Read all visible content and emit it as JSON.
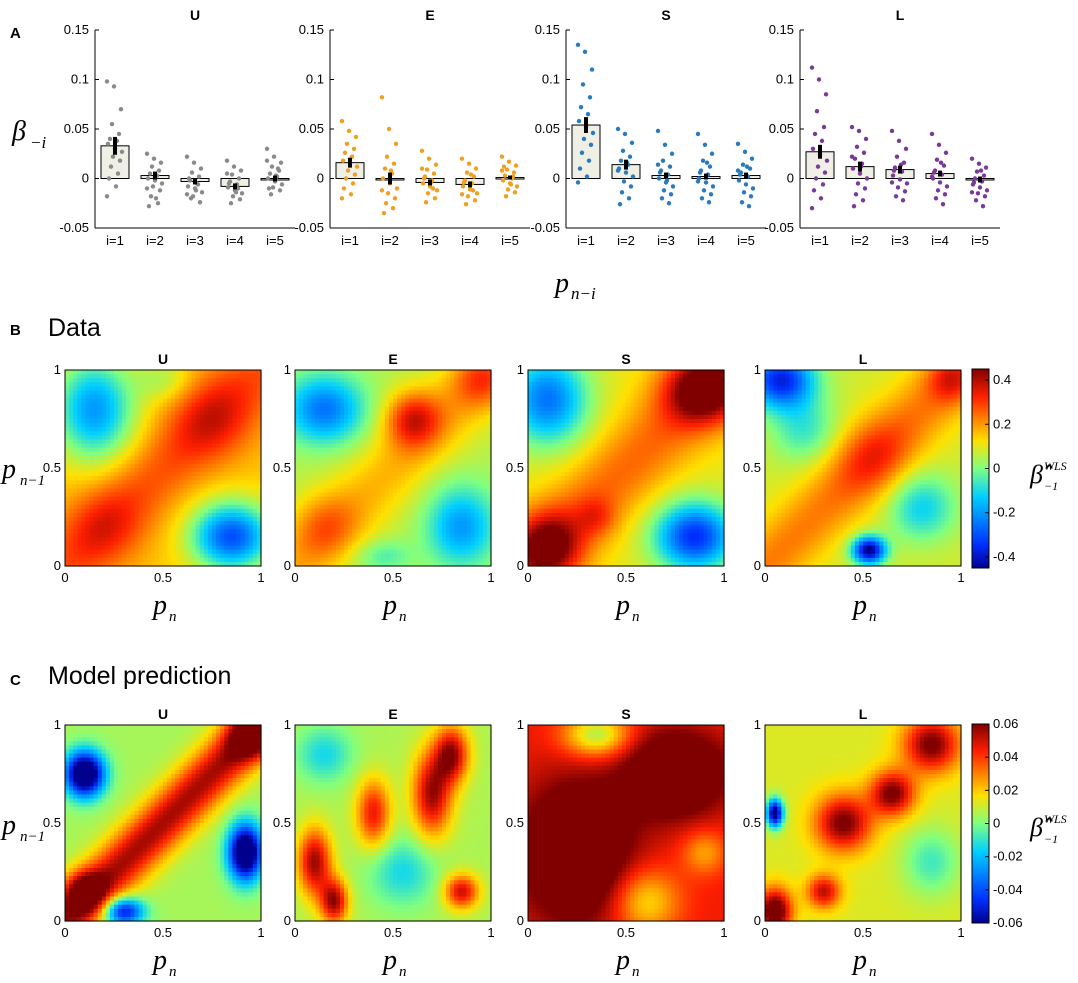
{
  "figure": {
    "panel_a": {
      "letter": "A",
      "xlabel_main": "p",
      "xlabel_sub": "n−i",
      "ylabel_main": "β",
      "ylabel_sub": "−i"
    },
    "panel_b": {
      "letter": "B",
      "title": "Data",
      "ylabel_main": "p",
      "ylabel_sub": "n−1",
      "xlabel_main": "p",
      "xlabel_sub": "n",
      "cbar_main": "β̂",
      "cbar_sup": "WLS",
      "cbar_sub": "−1"
    },
    "panel_c": {
      "letter": "C",
      "title": "Model prediction",
      "ylabel_main": "p",
      "ylabel_sub": "n−1",
      "xlabel_main": "p",
      "xlabel_sub": "n",
      "cbar_main": "β̂",
      "cbar_sup": "WLS",
      "cbar_sub": "−1"
    }
  },
  "colors": {
    "U": "#8a8a8a",
    "E": "#f0a020",
    "S": "#2a7ac0",
    "L": "#7a3a9a",
    "bar_fill": "#efefe5"
  },
  "chart_data": [
    {
      "type": "bar",
      "panel": "A",
      "ylim": [
        -0.05,
        0.15
      ],
      "yticks": [
        "0.15",
        "0.1",
        "0.05",
        "0",
        "-0.05"
      ],
      "categories": [
        "i=1",
        "i=2",
        "i=3",
        "i=4",
        "i=5"
      ],
      "series": [
        {
          "name": "U",
          "values": [
            0.033,
            0.003,
            -0.003,
            -0.008,
            0.0
          ],
          "sem": [
            0.009,
            0.004,
            0.003,
            0.003,
            0.003
          ],
          "points": [
            [
              0.098,
              0.093,
              0.07,
              0.055,
              0.045,
              0.04,
              0.038,
              0.035,
              0.03,
              0.027,
              0.022,
              0.018,
              0.012,
              0.005,
              0.0,
              -0.008,
              -0.018
            ],
            [
              0.025,
              0.02,
              0.016,
              0.012,
              0.008,
              0.005,
              0.003,
              0.0,
              -0.002,
              -0.005,
              -0.008,
              -0.012,
              -0.018,
              -0.025,
              -0.028,
              -0.02,
              -0.01
            ],
            [
              0.022,
              0.016,
              0.01,
              0.006,
              0.002,
              -0.002,
              -0.005,
              -0.008,
              -0.01,
              -0.014,
              -0.018,
              -0.024,
              -0.02,
              -0.006,
              0.0,
              -0.012,
              -0.016
            ],
            [
              0.018,
              0.012,
              0.008,
              0.004,
              0.0,
              -0.003,
              -0.006,
              -0.009,
              -0.012,
              -0.015,
              -0.018,
              -0.021,
              -0.025,
              -0.01,
              -0.005,
              -0.014,
              0.005
            ],
            [
              0.03,
              0.022,
              0.016,
              0.012,
              0.008,
              0.005,
              0.002,
              0.0,
              -0.003,
              -0.006,
              -0.009,
              -0.012,
              -0.016,
              0.01,
              -0.01,
              0.003,
              0.018
            ]
          ]
        },
        {
          "name": "E",
          "values": [
            0.016,
            0.0,
            -0.004,
            -0.006,
            0.001
          ],
          "sem": [
            0.005,
            0.006,
            0.003,
            0.003,
            0.002
          ],
          "points": [
            [
              0.058,
              0.048,
              0.042,
              0.035,
              0.03,
              0.026,
              0.022,
              0.018,
              0.015,
              0.012,
              0.008,
              0.004,
              0.0,
              -0.005,
              -0.01,
              -0.016,
              -0.02
            ],
            [
              0.082,
              0.05,
              0.035,
              0.022,
              0.015,
              0.01,
              0.005,
              0.0,
              -0.005,
              -0.01,
              -0.015,
              -0.02,
              -0.025,
              -0.03,
              -0.035,
              0.008,
              -0.012
            ],
            [
              0.028,
              0.02,
              0.014,
              0.009,
              0.005,
              0.002,
              -0.002,
              -0.005,
              -0.008,
              -0.012,
              -0.015,
              -0.02,
              -0.024,
              -0.01,
              0.0,
              -0.004,
              0.01
            ],
            [
              0.02,
              0.015,
              0.01,
              0.006,
              0.002,
              -0.002,
              -0.005,
              -0.008,
              -0.011,
              -0.015,
              -0.018,
              -0.022,
              -0.026,
              -0.012,
              -0.004,
              0.004,
              -0.016
            ],
            [
              0.022,
              0.017,
              0.013,
              0.009,
              0.006,
              0.003,
              0.0,
              -0.002,
              -0.005,
              -0.008,
              -0.011,
              -0.014,
              -0.018,
              0.002,
              0.012,
              -0.006,
              0.008
            ]
          ]
        },
        {
          "name": "S",
          "values": [
            0.054,
            0.014,
            0.003,
            0.002,
            0.003
          ],
          "sem": [
            0.008,
            0.005,
            0.003,
            0.003,
            0.003
          ],
          "points": [
            [
              0.135,
              0.128,
              0.11,
              0.095,
              0.082,
              0.072,
              0.065,
              0.058,
              0.052,
              0.046,
              0.04,
              0.034,
              0.026,
              0.018,
              0.01,
              0.002,
              -0.004
            ],
            [
              0.05,
              0.045,
              0.036,
              0.028,
              0.022,
              0.018,
              0.014,
              0.01,
              0.006,
              0.002,
              -0.003,
              -0.008,
              -0.014,
              -0.02,
              -0.026,
              0.016,
              0.008
            ],
            [
              0.048,
              0.034,
              0.025,
              0.018,
              0.012,
              0.008,
              0.004,
              0.0,
              -0.004,
              -0.008,
              -0.012,
              -0.016,
              -0.02,
              -0.025,
              0.006,
              -0.002,
              0.014
            ],
            [
              0.045,
              0.034,
              0.025,
              0.018,
              0.012,
              0.008,
              0.004,
              0.0,
              -0.004,
              -0.008,
              -0.012,
              -0.016,
              -0.02,
              -0.024,
              0.006,
              0.016,
              -0.003
            ],
            [
              0.035,
              0.027,
              0.02,
              0.014,
              0.01,
              0.006,
              0.002,
              -0.002,
              -0.006,
              -0.01,
              -0.014,
              -0.018,
              -0.024,
              -0.028,
              0.004,
              0.012,
              0.008
            ]
          ]
        },
        {
          "name": "L",
          "values": [
            0.027,
            0.012,
            0.009,
            0.005,
            -0.001
          ],
          "sem": [
            0.007,
            0.005,
            0.004,
            0.003,
            0.003
          ],
          "points": [
            [
              0.112,
              0.1,
              0.085,
              0.068,
              0.052,
              0.045,
              0.038,
              0.03,
              0.024,
              0.018,
              0.012,
              0.006,
              0.0,
              -0.006,
              -0.012,
              -0.02,
              -0.03
            ],
            [
              0.052,
              0.048,
              0.04,
              0.032,
              0.026,
              0.02,
              0.015,
              0.01,
              0.005,
              0.0,
              -0.005,
              -0.01,
              -0.016,
              -0.022,
              -0.028,
              0.012,
              0.022
            ],
            [
              0.048,
              0.038,
              0.03,
              0.022,
              0.016,
              0.011,
              0.007,
              0.003,
              -0.001,
              -0.005,
              -0.009,
              -0.013,
              -0.018,
              -0.022,
              0.008,
              0.014,
              -0.004
            ],
            [
              0.045,
              0.034,
              0.026,
              0.019,
              0.013,
              0.008,
              0.004,
              0.0,
              -0.004,
              -0.008,
              -0.012,
              -0.016,
              -0.02,
              -0.026,
              0.006,
              0.016,
              0.002
            ],
            [
              0.02,
              0.015,
              0.011,
              0.007,
              0.003,
              0.0,
              -0.003,
              -0.006,
              -0.009,
              -0.012,
              -0.015,
              -0.018,
              -0.022,
              -0.028,
              -0.004,
              0.008,
              -0.014
            ]
          ]
        }
      ]
    },
    {
      "type": "heatmap",
      "panel": "B",
      "panels": [
        "U",
        "E",
        "S",
        "L"
      ],
      "xlim": [
        0,
        1
      ],
      "ylim": [
        0,
        1
      ],
      "xticks": [
        "0",
        "0.5",
        "1"
      ],
      "yticks": [
        "1",
        "0.5",
        "0"
      ],
      "clim": [
        -0.45,
        0.45
      ],
      "cbar_ticks": [
        "0.4",
        "0.2",
        "0",
        "-0.2",
        "-0.4"
      ],
      "cbar_values": [
        0.4,
        0.2,
        0,
        -0.2,
        -0.4
      ]
    },
    {
      "type": "heatmap",
      "panel": "C",
      "panels": [
        "U",
        "E",
        "S",
        "L"
      ],
      "xlim": [
        0,
        1
      ],
      "ylim": [
        0,
        1
      ],
      "xticks": [
        "0",
        "0.5",
        "1"
      ],
      "yticks": [
        "1",
        "0.5",
        "0"
      ],
      "clim": [
        -0.06,
        0.06
      ],
      "cbar_ticks": [
        "0.06",
        "0.04",
        "0.02",
        "0",
        "-0.02",
        "-0.04",
        "-0.06"
      ],
      "cbar_values": [
        0.06,
        0.04,
        0.02,
        0,
        -0.02,
        -0.04,
        -0.06
      ]
    }
  ]
}
